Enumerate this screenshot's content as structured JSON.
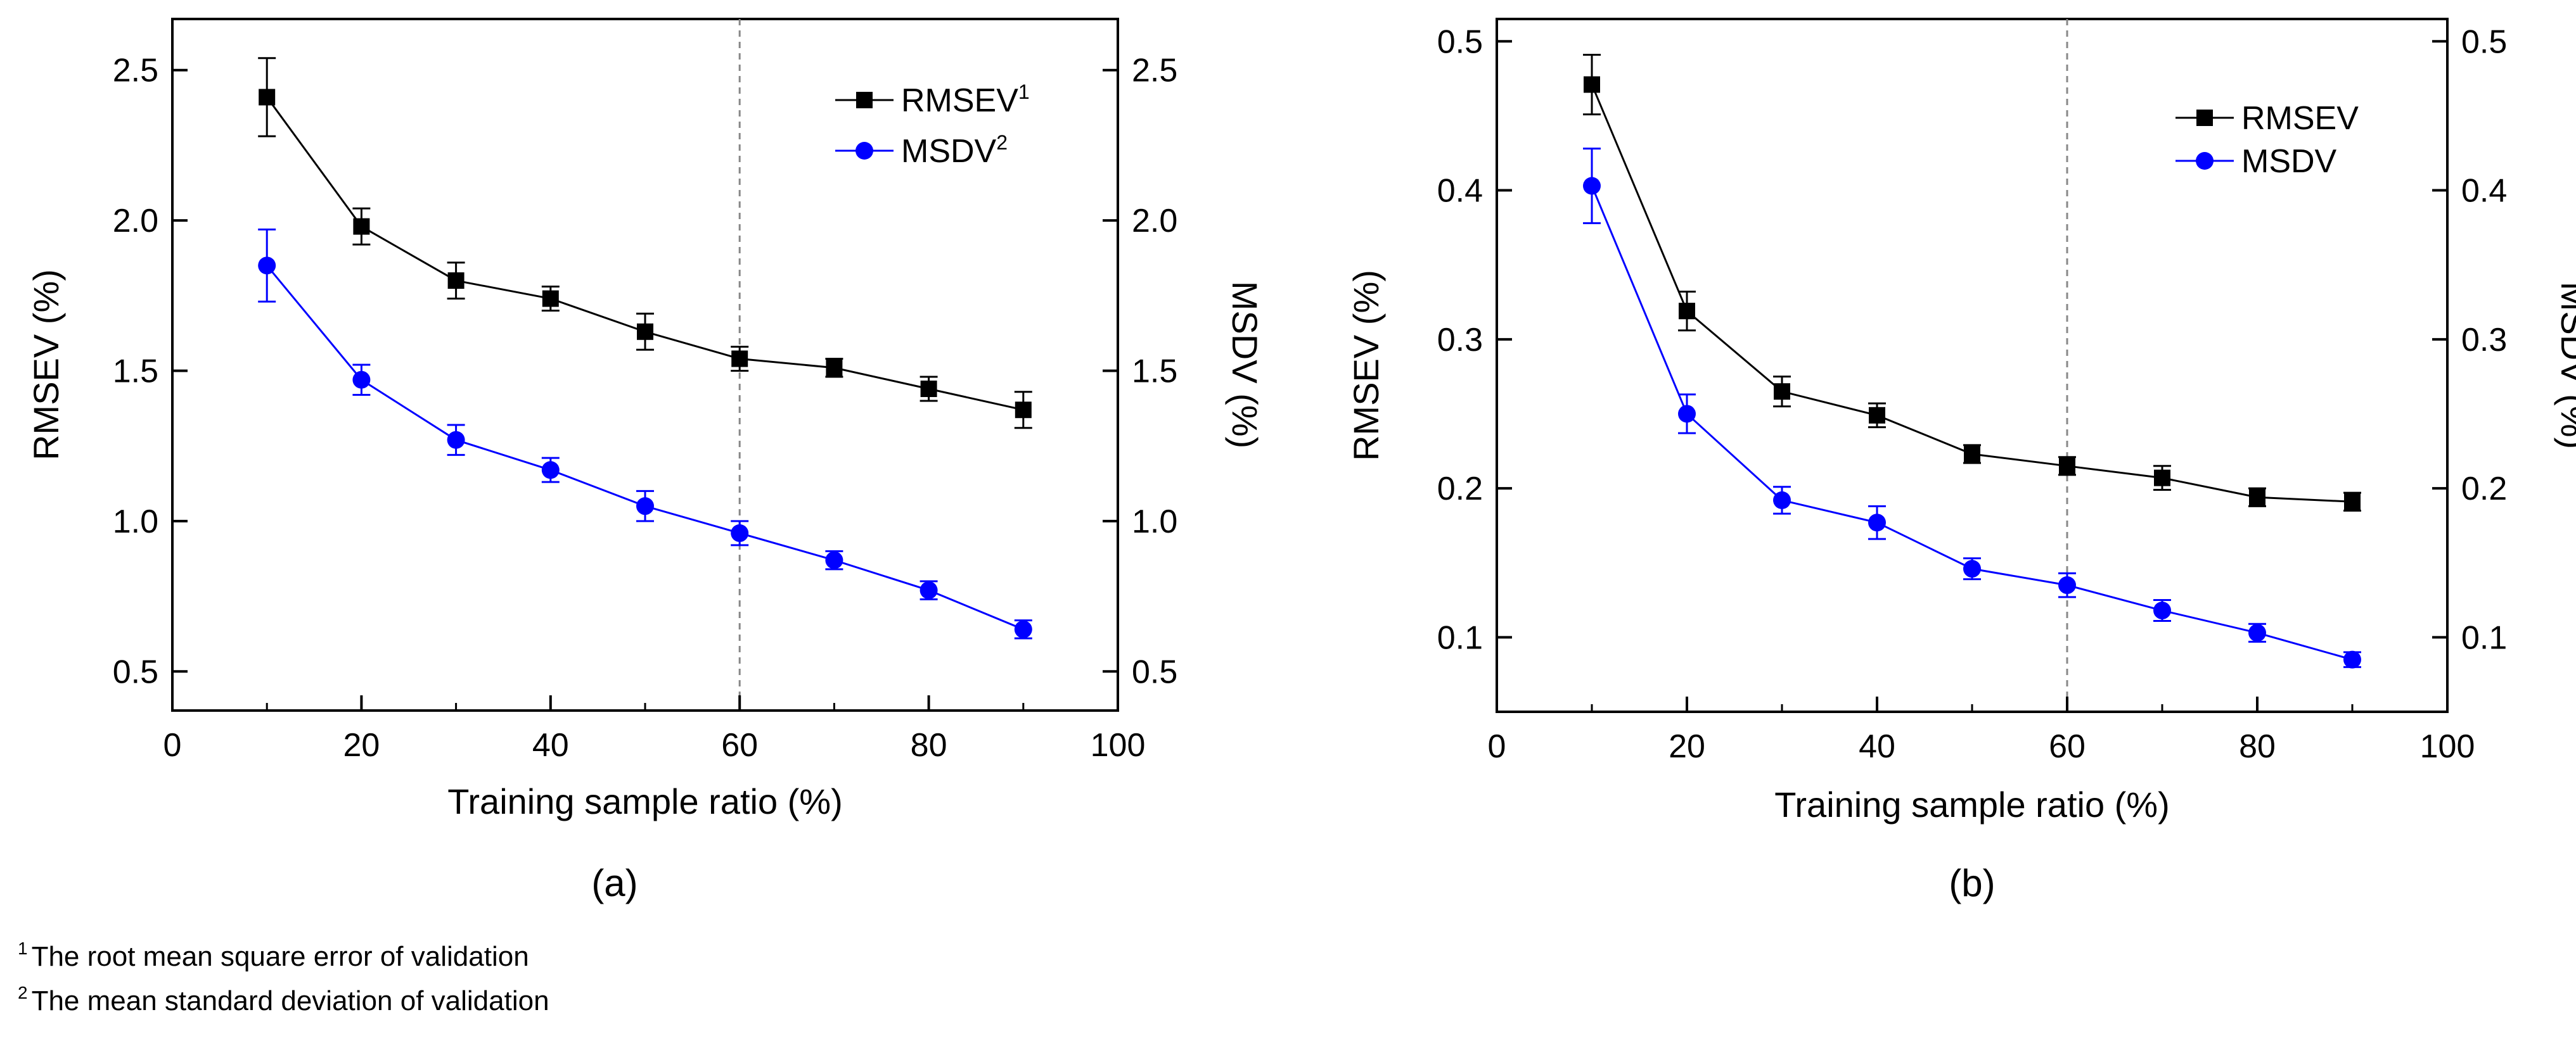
{
  "chart_data": [
    {
      "type": "line",
      "title": "",
      "panel_label": "(a)",
      "xlabel": "Training sample ratio (%)",
      "ylabel_left": "RMSEV (%)",
      "ylabel_right": "MSDV (%)",
      "xlim": [
        0,
        100
      ],
      "ylim": [
        0.37,
        2.67
      ],
      "x_ticks": [
        0,
        20,
        40,
        60,
        80,
        100
      ],
      "y_ticks": [
        0.5,
        1.0,
        1.5,
        2.0,
        2.5
      ],
      "y_tick_labels": [
        "0.5",
        "1.0",
        "1.5",
        "2.0",
        "2.5"
      ],
      "vline_x": 60,
      "legend_position": "top-right",
      "x": [
        10,
        20,
        30,
        40,
        50,
        60,
        70,
        80,
        90
      ],
      "series": [
        {
          "name": "RMSEV",
          "legend_label": "RMSEV",
          "sup": "1",
          "color": "#000000",
          "marker": "square",
          "values": [
            2.41,
            1.98,
            1.8,
            1.74,
            1.63,
            1.54,
            1.51,
            1.44,
            1.37
          ],
          "errors": [
            0.13,
            0.06,
            0.06,
            0.04,
            0.06,
            0.04,
            0.03,
            0.04,
            0.06
          ]
        },
        {
          "name": "MSDV",
          "legend_label": "MSDV",
          "sup": "2",
          "color": "#0000ff",
          "marker": "circle",
          "values": [
            1.85,
            1.47,
            1.27,
            1.17,
            1.05,
            0.96,
            0.87,
            0.77,
            0.64
          ],
          "errors": [
            0.12,
            0.05,
            0.05,
            0.04,
            0.05,
            0.04,
            0.03,
            0.03,
            0.03
          ]
        }
      ]
    },
    {
      "type": "line",
      "title": "",
      "panel_label": "(b)",
      "xlabel": "Training sample ratio (%)",
      "ylabel_left": "RMSEV (%)",
      "ylabel_right": "MSDV (%)",
      "xlim": [
        0,
        100
      ],
      "ylim": [
        0.05,
        0.515
      ],
      "x_ticks": [
        0,
        20,
        40,
        60,
        80,
        100
      ],
      "y_ticks": [
        0.1,
        0.2,
        0.3,
        0.4,
        0.5
      ],
      "y_tick_labels": [
        "0.1",
        "0.2",
        "0.3",
        "0.4",
        "0.5"
      ],
      "vline_x": 60,
      "legend_position": "top-right",
      "x": [
        10,
        20,
        30,
        40,
        50,
        60,
        70,
        80,
        90
      ],
      "series": [
        {
          "name": "RMSEV",
          "legend_label": "RMSEV",
          "sup": "",
          "color": "#000000",
          "marker": "square",
          "values": [
            0.471,
            0.319,
            0.265,
            0.249,
            0.223,
            0.215,
            0.207,
            0.194,
            0.191
          ],
          "errors": [
            0.02,
            0.013,
            0.01,
            0.008,
            0.006,
            0.006,
            0.008,
            0.006,
            0.006
          ]
        },
        {
          "name": "MSDV",
          "legend_label": "MSDV",
          "sup": "",
          "color": "#0000ff",
          "marker": "circle",
          "values": [
            0.403,
            0.25,
            0.192,
            0.177,
            0.146,
            0.135,
            0.118,
            0.103,
            0.085
          ],
          "errors": [
            0.025,
            0.013,
            0.009,
            0.011,
            0.007,
            0.008,
            0.007,
            0.006,
            0.005
          ]
        }
      ]
    }
  ],
  "footnotes": [
    {
      "mark": "1",
      "text": "The root mean square error of validation"
    },
    {
      "mark": "2",
      "text": "The mean standard deviation of validation"
    }
  ]
}
